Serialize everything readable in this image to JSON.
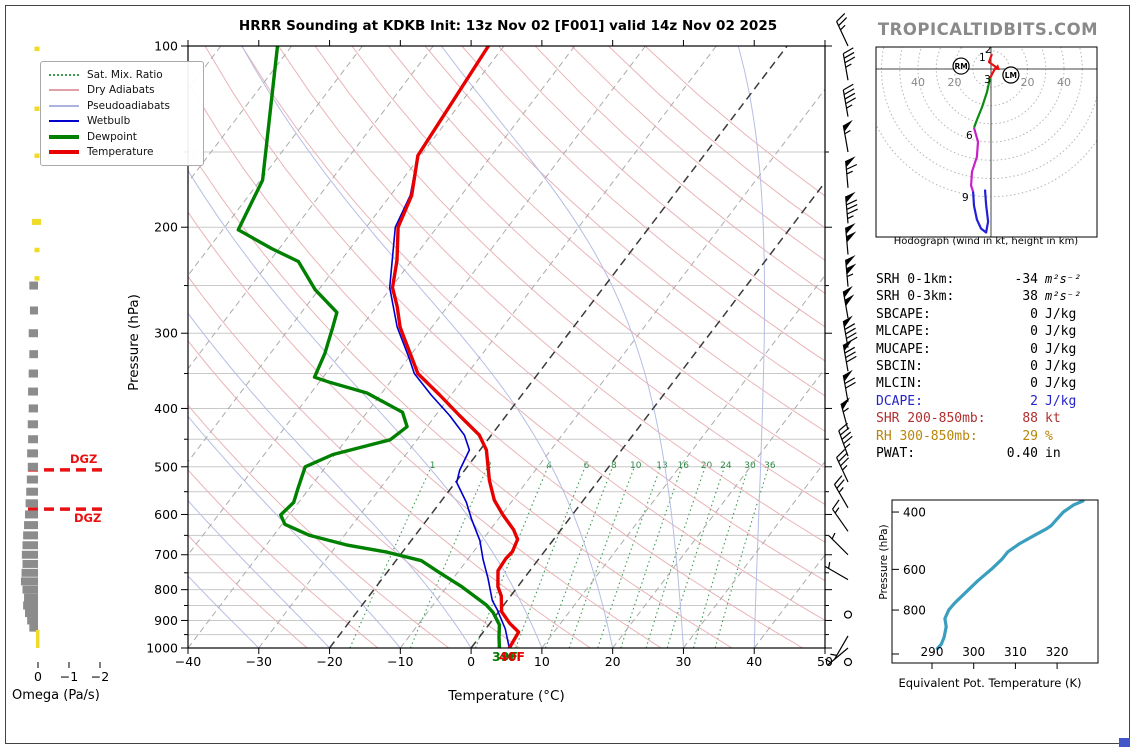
{
  "title": "HRRR Sounding at KDKB Init: 13z Nov 02 [F001] valid 14z Nov 02 2025",
  "watermark": "TROPICALTIDBITS.COM",
  "annotations": {
    "dgz": "DGZ",
    "surface_temp": "40F",
    "surface_dewp": "39F",
    "dgz_pressures": [
      506,
      588
    ]
  },
  "legend": {
    "items": [
      {
        "label": "Sat. Mix. Ratio",
        "color": "#3d9b50",
        "style": "dotted",
        "weight": 2
      },
      {
        "label": "Dry Adiabats",
        "color": "#e0a0a8",
        "style": "solid",
        "weight": 2
      },
      {
        "label": "Pseudoadiabats",
        "color": "#aab4dc",
        "style": "solid",
        "weight": 2
      },
      {
        "label": "Wetbulb",
        "color": "#0000cd",
        "style": "solid",
        "weight": 2
      },
      {
        "label": "Dewpoint",
        "color": "#008000",
        "style": "solid",
        "weight": 4
      },
      {
        "label": "Temperature",
        "color": "#e80000",
        "style": "solid",
        "weight": 4
      }
    ]
  },
  "indices": {
    "rows": [
      {
        "label": "SRH 0-1km:",
        "value": "-34",
        "unit": "m²s⁻²",
        "color": "#000000",
        "math": true
      },
      {
        "label": "SRH 0-3km:",
        "value": "38",
        "unit": "m²s⁻²",
        "color": "#000000",
        "math": true
      },
      {
        "label": "SBCAPE:",
        "value": "0",
        "unit": "J/kg",
        "color": "#000000"
      },
      {
        "label": "MLCAPE:",
        "value": "0",
        "unit": "J/kg",
        "color": "#000000"
      },
      {
        "label": "MUCAPE:",
        "value": "0",
        "unit": "J/kg",
        "color": "#000000"
      },
      {
        "label": "SBCIN:",
        "value": "0",
        "unit": "J/kg",
        "color": "#000000"
      },
      {
        "label": "MLCIN:",
        "value": "0",
        "unit": "J/kg",
        "color": "#000000"
      },
      {
        "label": "DCAPE:",
        "value": "2",
        "unit": "J/kg",
        "color": "#2424c8"
      },
      {
        "label": "SHR 200-850mb:",
        "value": "88",
        "unit": "kt",
        "color": "#b03030"
      },
      {
        "label": "RH 300-850mb:",
        "value": "29",
        "unit": "%",
        "color": "#b8860b"
      },
      {
        "label": "PWAT:",
        "value": "0.40",
        "unit": "in",
        "color": "#000000"
      }
    ]
  },
  "chart_data": [
    {
      "id": "skewt",
      "type": "line",
      "xlabel": "Temperature (°C)",
      "ylabel": "Pressure (hPa)",
      "xlim": [
        -40,
        50
      ],
      "plim": [
        100,
        1000
      ],
      "x_tick_labels": [
        "−40",
        "−30",
        "−20",
        "−10",
        "0",
        "10",
        "20",
        "30",
        "40",
        "50"
      ],
      "x_ticks": [
        -40,
        -30,
        -20,
        -10,
        0,
        10,
        20,
        30,
        40,
        50
      ],
      "p_tick_labels": [
        "100",
        "200",
        "300",
        "400",
        "500",
        "600",
        "700",
        "800",
        "900",
        "1000"
      ],
      "p_ticks": [
        100,
        200,
        300,
        400,
        500,
        600,
        700,
        800,
        900,
        1000
      ],
      "isotherm_step": 10,
      "bold_isotherms": [
        0,
        -20
      ],
      "dry_adiabats_theta_K": [
        250,
        260,
        270,
        280,
        290,
        300,
        310,
        320,
        330,
        340,
        350,
        360,
        370,
        380,
        390,
        400,
        410,
        420,
        430,
        440,
        450
      ],
      "pseudoadiabat_T0_C": [
        -60,
        -50,
        -40,
        -30,
        -20,
        -10,
        0,
        10,
        20,
        30,
        40
      ],
      "mixing_ratio_gkg": [
        1,
        2,
        4,
        6,
        8,
        10,
        13,
        16,
        20,
        24,
        30,
        36
      ],
      "series": [
        {
          "name": "Temperature",
          "color": "#e80000",
          "width": 3.4,
          "points": [
            [
              100,
              -62.2
            ],
            [
              152,
              -60.4
            ],
            [
              177,
              -57.0
            ],
            [
              200,
              -55.5
            ],
            [
              227,
              -52.1
            ],
            [
              252,
              -49.8
            ],
            [
              271,
              -47.1
            ],
            [
              293,
              -44.5
            ],
            [
              308,
              -42.4
            ],
            [
              329,
              -39.6
            ],
            [
              350,
              -37.0
            ],
            [
              380,
              -31.6
            ],
            [
              411,
              -26.6
            ],
            [
              443,
              -21.7
            ],
            [
              469,
              -19.1
            ],
            [
              527,
              -15.4
            ],
            [
              568,
              -12.6
            ],
            [
              601,
              -9.8
            ],
            [
              636,
              -6.7
            ],
            [
              660,
              -5.1
            ],
            [
              692,
              -4.5
            ],
            [
              710,
              -4.7
            ],
            [
              744,
              -4.5
            ],
            [
              791,
              -2.8
            ],
            [
              820,
              -1.3
            ],
            [
              870,
              0.4
            ],
            [
              910,
              2.8
            ],
            [
              941,
              5.0
            ],
            [
              1000,
              5.4
            ]
          ]
        },
        {
          "name": "Dewpoint",
          "color": "#008000",
          "width": 3.4,
          "points": [
            [
              100,
              -92.0
            ],
            [
              167,
              -79.7
            ],
            [
              202,
              -77.8
            ],
            [
              217,
              -71.1
            ],
            [
              228,
              -65.9
            ],
            [
              254,
              -60.5
            ],
            [
              277,
              -55.0
            ],
            [
              293,
              -54.0
            ],
            [
              324,
              -52.3
            ],
            [
              355,
              -51.2
            ],
            [
              362,
              -48.5
            ],
            [
              377,
              -42.1
            ],
            [
              406,
              -35.0
            ],
            [
              429,
              -32.8
            ],
            [
              451,
              -33.8
            ],
            [
              477,
              -40.3
            ],
            [
              500,
              -42.9
            ],
            [
              543,
              -41.6
            ],
            [
              573,
              -40.7
            ],
            [
              601,
              -41.2
            ],
            [
              623,
              -39.6
            ],
            [
              650,
              -34.9
            ],
            [
              674,
              -28.7
            ],
            [
              693,
              -22.2
            ],
            [
              716,
              -16.4
            ],
            [
              750,
              -12.5
            ],
            [
              791,
              -7.9
            ],
            [
              848,
              -2.5
            ],
            [
              873,
              -0.7
            ],
            [
              915,
              1.5
            ],
            [
              960,
              2.8
            ],
            [
              1000,
              4.0
            ]
          ]
        },
        {
          "name": "Wetbulb",
          "color": "#0000cd",
          "width": 1.6,
          "points": [
            [
              100,
              -62.2
            ],
            [
              152,
              -60.4
            ],
            [
              177,
              -57.2
            ],
            [
              200,
              -55.9
            ],
            [
              252,
              -50.2
            ],
            [
              293,
              -44.9
            ],
            [
              329,
              -40.0
            ],
            [
              350,
              -37.5
            ],
            [
              380,
              -32.8
            ],
            [
              411,
              -28.0
            ],
            [
              443,
              -23.8
            ],
            [
              469,
              -21.5
            ],
            [
              507,
              -20.7
            ],
            [
              531,
              -19.8
            ],
            [
              573,
              -16.3
            ],
            [
              612,
              -13.7
            ],
            [
              663,
              -10.3
            ],
            [
              713,
              -7.8
            ],
            [
              766,
              -5.1
            ],
            [
              834,
              -2.1
            ],
            [
              864,
              -0.4
            ],
            [
              930,
              2.8
            ],
            [
              1000,
              5.4
            ]
          ]
        }
      ]
    },
    {
      "id": "hodograph",
      "type": "line",
      "caption": "Hodograph (wind in kt, height in km)",
      "rings_kt": [
        10,
        20,
        30,
        40,
        50,
        60,
        70
      ],
      "ring_labels": [
        {
          "t": "40",
          "u": -40
        },
        {
          "t": "20",
          "u": -20
        },
        {
          "t": "20",
          "u": 20
        },
        {
          "t": "40",
          "u": 40
        }
      ],
      "segments": [
        {
          "color": "#e81010",
          "points": [
            [
              0.5,
              8.2
            ],
            [
              -1.1,
              3.8
            ],
            [
              2.7,
              1.1
            ],
            [
              -0.5,
              -4.9
            ]
          ],
          "arrow": true
        },
        {
          "color": "#0c8c10",
          "points": [
            [
              -0.5,
              -4.9
            ],
            [
              -2.2,
              -12.6
            ],
            [
              -4.9,
              -20.8
            ],
            [
              -7.7,
              -27.9
            ],
            [
              -9.3,
              -32.2
            ]
          ]
        },
        {
          "color": "#c820c8",
          "points": [
            [
              -9.3,
              -32.2
            ],
            [
              -7.1,
              -39.9
            ],
            [
              -7.7,
              -48.1
            ],
            [
              -10.4,
              -56.3
            ],
            [
              -10.9,
              -63.9
            ],
            [
              -9.8,
              -67.2
            ]
          ]
        },
        {
          "color": "#2020d8",
          "points": [
            [
              -9.8,
              -67.2
            ],
            [
              -9.3,
              -74.9
            ],
            [
              -7.7,
              -82.5
            ],
            [
              -5.5,
              -87.4
            ],
            [
              -2.7,
              -89.6
            ],
            [
              -1.6,
              -83.6
            ],
            [
              -2.7,
              -74.3
            ],
            [
              -3.3,
              -66.1
            ]
          ]
        }
      ],
      "km_labels": [
        {
          "t": "1",
          "u": -4.4,
          "v": 6.6
        },
        {
          "t": "2",
          "u": -1.1,
          "v": 11.0
        },
        {
          "t": "3",
          "u": -1.6,
          "v": -5.5
        },
        {
          "t": "6",
          "u": -11.5,
          "v": -36.2
        },
        {
          "t": "9",
          "u": -13.7,
          "v": -70.1
        }
      ],
      "markers": [
        {
          "t": "RM",
          "u": -16.4,
          "v": 1.6
        },
        {
          "t": "LM",
          "u": 10.9,
          "v": -3.3
        }
      ]
    },
    {
      "id": "thetae",
      "type": "line",
      "xlabel": "Equivalent Pot. Temperature (K)",
      "ylabel": "Pressure (hPa)",
      "x_ticks": [
        290,
        300,
        310,
        320
      ],
      "x_tick_labels": [
        "290",
        "300",
        "310",
        "320"
      ],
      "p_ticks": [
        400,
        600,
        800
      ],
      "p_tick_labels": [
        "400",
        "600",
        "800"
      ],
      "color": "#3a9fbe",
      "points": [
        [
          1050,
          291.3
        ],
        [
          1020,
          292.2
        ],
        [
          970,
          292.9
        ],
        [
          900,
          293.4
        ],
        [
          850,
          293.1
        ],
        [
          800,
          294.0
        ],
        [
          760,
          295.5
        ],
        [
          700,
          298.4
        ],
        [
          650,
          301.0
        ],
        [
          600,
          304.2
        ],
        [
          560,
          306.7
        ],
        [
          530,
          308.2
        ],
        [
          500,
          311.0
        ],
        [
          470,
          314.8
        ],
        [
          450,
          317.5
        ],
        [
          440,
          318.6
        ],
        [
          420,
          320.0
        ],
        [
          400,
          321.5
        ],
        [
          380,
          324.0
        ],
        [
          370,
          326.2
        ]
      ]
    },
    {
      "id": "omega",
      "type": "bar",
      "xlabel": "Omega (Pa/s)",
      "x_ticks": [
        0,
        -1,
        -2
      ],
      "x_tick_labels": [
        "0",
        "−1",
        "−2"
      ],
      "bar_color": "#8c8c8c",
      "highlight_color": "#f0dc28",
      "bars": [
        [
          250,
          0.28
        ],
        [
          275,
          0.26
        ],
        [
          300,
          0.3
        ],
        [
          325,
          0.28
        ],
        [
          350,
          0.3
        ],
        [
          375,
          0.32
        ],
        [
          400,
          0.3
        ],
        [
          425,
          0.33
        ],
        [
          450,
          0.32
        ],
        [
          475,
          0.35
        ],
        [
          500,
          0.33
        ],
        [
          525,
          0.36
        ],
        [
          550,
          0.38
        ],
        [
          575,
          0.4
        ],
        [
          600,
          0.42
        ],
        [
          625,
          0.45
        ],
        [
          650,
          0.48
        ],
        [
          675,
          0.5
        ],
        [
          700,
          0.52
        ],
        [
          725,
          0.5
        ],
        [
          750,
          0.53
        ],
        [
          775,
          0.55
        ],
        [
          800,
          0.5
        ],
        [
          825,
          0.45
        ],
        [
          850,
          0.48
        ],
        [
          875,
          0.42
        ],
        [
          900,
          0.35
        ],
        [
          925,
          0.28
        ]
      ],
      "yellow_marks": [
        {
          "p": 101
        },
        {
          "p": 127
        },
        {
          "p": 152
        },
        {
          "p": 196,
          "big": 1
        },
        {
          "p": 218
        },
        {
          "p": 243
        },
        {
          "p": 955,
          "tall": 1
        }
      ]
    },
    {
      "id": "wind_barbs",
      "type": "barbs",
      "levels": [
        {
          "p": 100,
          "s": 25,
          "d": 335
        },
        {
          "p": 114,
          "s": 35,
          "d": 350
        },
        {
          "p": 131,
          "s": 45,
          "d": 350
        },
        {
          "p": 150,
          "s": 55,
          "d": 350
        },
        {
          "p": 172,
          "s": 65,
          "d": 355
        },
        {
          "p": 197,
          "s": 85,
          "d": 355
        },
        {
          "p": 222,
          "s": 100,
          "d": 355
        },
        {
          "p": 251,
          "s": 105,
          "d": 355
        },
        {
          "p": 283,
          "s": 100,
          "d": 350
        },
        {
          "p": 317,
          "s": 90,
          "d": 350
        },
        {
          "p": 347,
          "s": 80,
          "d": 350
        },
        {
          "p": 390,
          "s": 70,
          "d": 350
        },
        {
          "p": 434,
          "s": 55,
          "d": 345
        },
        {
          "p": 480,
          "s": 45,
          "d": 340
        },
        {
          "p": 530,
          "s": 35,
          "d": 335
        },
        {
          "p": 585,
          "s": 25,
          "d": 330
        },
        {
          "p": 640,
          "s": 15,
          "d": 325
        },
        {
          "p": 700,
          "s": 7,
          "d": 315
        },
        {
          "p": 770,
          "s": 5,
          "d": 300
        },
        {
          "p": 880,
          "s": 0,
          "d": 0
        },
        {
          "p": 955,
          "s": 5,
          "d": 210
        },
        {
          "p": 1000,
          "s": 7,
          "d": 230
        },
        {
          "p": 1055,
          "s": 0,
          "d": 0
        }
      ]
    }
  ]
}
